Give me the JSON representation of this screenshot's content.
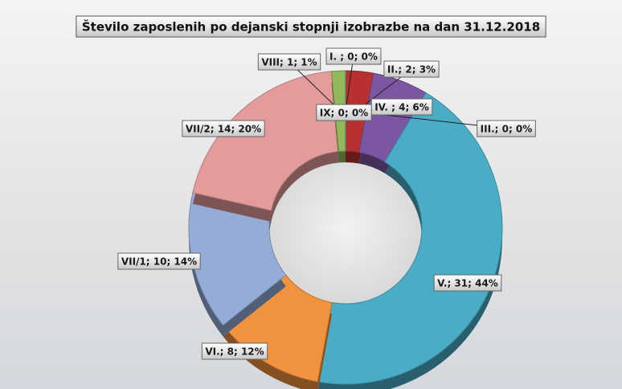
{
  "chart_data": {
    "type": "donut",
    "title": "Število zaposlenih po dejanski stopnji izobrazbe na dan 31.12.2018",
    "categories": [
      "I.",
      "II.",
      "III.",
      "IV.",
      "V.",
      "VI.",
      "VII/1",
      "VII/2",
      "VIII",
      "IX"
    ],
    "values": [
      0,
      2,
      0,
      4,
      31,
      8,
      10,
      14,
      1,
      0
    ],
    "value_labels": [
      "I. ; 0; 0%",
      "II.; 2; 3%",
      "III.; 0; 0%",
      "IV. ; 4; 6%",
      "V.; 31; 44%",
      "VI.; 8; 12%",
      "VII/1; 10; 14%",
      "VII/2; 14; 20%",
      "VIII; 1; 1%",
      "IX; 0; 0%"
    ],
    "colors": [
      "#3b5998",
      "#b8312f",
      "#6b8e23",
      "#7b56a3",
      "#4aacc5",
      "#f0923e",
      "#94acd6",
      "#e49b9b",
      "#93b85a",
      "#5f9ea0"
    ]
  }
}
